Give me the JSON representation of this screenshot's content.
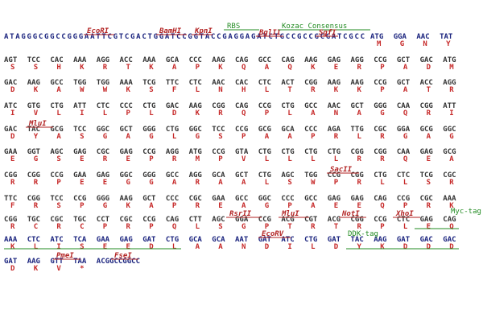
{
  "rows": [
    {
      "prefix": "ATAGGGCGGCCGGGAATTCGTCGACTGGATCCGGTACCGAGGAGATCTGCCGCCGCGATCGCC",
      "codons": [
        "ATG",
        "GGA",
        "AAC",
        "TAT"
      ],
      "aa": [
        "M",
        "G",
        "N",
        "Y"
      ],
      "annotations": [
        {
          "label": "EcoRI",
          "color": "#b22222"
        },
        {
          "label": "BamHI",
          "color": "#b22222"
        },
        {
          "label": "KpnI",
          "color": "#b22222"
        },
        {
          "label": "RBS",
          "color": "#228b22"
        },
        {
          "label": "BglII",
          "color": "#b22222"
        },
        {
          "label": "Kozac Consensus",
          "color": "#228b22"
        },
        {
          "label": "SgfI",
          "color": "#b22222"
        }
      ]
    },
    {
      "codons": [
        "AGT",
        "TCC",
        "CAC",
        "AAA",
        "AGG",
        "ACC",
        "AAA",
        "GCA",
        "CCC",
        "AAG",
        "CAG",
        "GCC",
        "CAG",
        "AAG",
        "GAG",
        "AGG",
        "CCG",
        "GCT",
        "GAC",
        "ATG"
      ],
      "aa": [
        "S",
        "S",
        "H",
        "K",
        "R",
        "T",
        "K",
        "A",
        "P",
        "K",
        "Q",
        "A",
        "Q",
        "K",
        "E",
        "R",
        "P",
        "A",
        "D",
        "M"
      ],
      "annotations": []
    },
    {
      "codons": [
        "GAC",
        "AAG",
        "GCC",
        "TGG",
        "TGG",
        "AAA",
        "TCG",
        "TTC",
        "CTC",
        "AAC",
        "CAC",
        "CTC",
        "ACT",
        "CGG",
        "AAG",
        "AAG",
        "CCG",
        "GCT",
        "ACC",
        "AGG"
      ],
      "aa": [
        "D",
        "K",
        "A",
        "W",
        "W",
        "K",
        "S",
        "F",
        "L",
        "N",
        "H",
        "L",
        "T",
        "R",
        "K",
        "K",
        "P",
        "A",
        "T",
        "R"
      ],
      "annotations": []
    },
    {
      "codons": [
        "ATC",
        "GTG",
        "CTG",
        "ATT",
        "CTC",
        "CCC",
        "CTG",
        "GAC",
        "AAG",
        "CGG",
        "CAG",
        "CCG",
        "CTG",
        "GCC",
        "AAC",
        "GCT",
        "GGG",
        "CAA",
        "CGG",
        "ATT"
      ],
      "aa": [
        "I",
        "V",
        "L",
        "I",
        "L",
        "P",
        "L",
        "D",
        "K",
        "R",
        "Q",
        "P",
        "L",
        "A",
        "N",
        "A",
        "G",
        "Q",
        "R",
        "I"
      ],
      "annotations": []
    },
    {
      "codons": [
        "GAC",
        "TAC",
        "GCG",
        "TCC",
        "GGC",
        "GCT",
        "GGG",
        "CTG",
        "GGC",
        "TCC",
        "CCG",
        "GCG",
        "GCA",
        "CCC",
        "AGA",
        "TTG",
        "CGC",
        "GGA",
        "GCG",
        "GGC"
      ],
      "aa": [
        "D",
        "Y",
        "A",
        "S",
        "G",
        "A",
        "G",
        "L",
        "G",
        "S",
        "P",
        "A",
        "A",
        "P",
        "R",
        "L",
        "R",
        "G",
        "A",
        "G"
      ],
      "annotations": [
        {
          "label": "MluI",
          "color": "#b22222"
        }
      ]
    },
    {
      "codons": [
        "GAA",
        "GGT",
        "AGC",
        "GAG",
        "CGC",
        "GAG",
        "CCG",
        "AGG",
        "ATG",
        "CCG",
        "GTA",
        "CTG",
        "CTG",
        "CTG",
        "CTG",
        "CGG",
        "CGG",
        "CAA",
        "GAG",
        "GCG"
      ],
      "aa": [
        "E",
        "G",
        "S",
        "E",
        "R",
        "E",
        "P",
        "R",
        "M",
        "P",
        "V",
        "L",
        "L",
        "L",
        "L",
        "R",
        "R",
        "Q",
        "E",
        "A"
      ],
      "annotations": []
    },
    {
      "codons": [
        "CGG",
        "CGG",
        "CCG",
        "GAA",
        "GAG",
        "GGC",
        "GGG",
        "GCC",
        "AGG",
        "GCA",
        "GCT",
        "CTG",
        "AGC",
        "TGG",
        "CCG",
        "CGG",
        "CTG",
        "CTC",
        "TCG",
        "CGC"
      ],
      "aa": [
        "R",
        "R",
        "P",
        "E",
        "E",
        "G",
        "G",
        "A",
        "R",
        "A",
        "A",
        "L",
        "S",
        "W",
        "P",
        "R",
        "L",
        "L",
        "S",
        "R"
      ],
      "annotations": [
        {
          "label": "SacII",
          "color": "#b22222"
        }
      ]
    },
    {
      "codons": [
        "TTC",
        "CGG",
        "TCC",
        "CCG",
        "GGG",
        "AAG",
        "GCT",
        "CCC",
        "CGC",
        "GAA",
        "GCC",
        "GGC",
        "CCC",
        "GCC",
        "GAG",
        "GAG",
        "CAG",
        "CCG",
        "CGC",
        "AAA"
      ],
      "aa": [
        "F",
        "R",
        "S",
        "P",
        "G",
        "K",
        "A",
        "P",
        "R",
        "E",
        "A",
        "G",
        "P",
        "A",
        "E",
        "E",
        "Q",
        "P",
        "R",
        "K"
      ],
      "annotations": []
    },
    {
      "codons": [
        "CGG",
        "TGC",
        "CGC",
        "TGC",
        "CCT",
        "CGC",
        "CCG",
        "CAG",
        "CTT",
        "AGC",
        "GGA",
        "CCG",
        "ACG",
        "CGT",
        "ACG",
        "CGG",
        "CCG",
        "CTC",
        "GAG",
        "CAG"
      ],
      "aa": [
        "R",
        "C",
        "R",
        "C",
        "P",
        "R",
        "P",
        "Q",
        "L",
        "S",
        "G",
        "P",
        "T",
        "R",
        "T",
        "R",
        "P",
        "L",
        "E",
        "Q"
      ],
      "annotations": [
        {
          "label": "RsrII",
          "color": "#b22222"
        },
        {
          "label": "MluI",
          "color": "#b22222"
        },
        {
          "label": "NotI",
          "color": "#b22222"
        },
        {
          "label": "XhoI",
          "color": "#b22222"
        },
        {
          "label": "Myc-tag",
          "color": "#228b22"
        }
      ]
    },
    {
      "codons": [
        "AAA",
        "CTC",
        "ATC",
        "TCA",
        "GAA",
        "GAG",
        "GAT",
        "CTG",
        "GCA",
        "GCA",
        "AAT",
        "GAT",
        "ATC",
        "CTG",
        "GAT",
        "TAC",
        "AAG",
        "GAT",
        "GAC",
        "GAC"
      ],
      "aa": [
        "K",
        "L",
        "I",
        "S",
        "E",
        "E",
        "D",
        "L",
        "A",
        "A",
        "N",
        "D",
        "I",
        "L",
        "D",
        "Y",
        "K",
        "D",
        "D",
        "D"
      ],
      "annotations": [
        {
          "label": "EcoRV",
          "color": "#b22222"
        },
        {
          "label": "DDK-tag",
          "color": "#228b22"
        }
      ]
    },
    {
      "codons": [
        "GAT",
        "AAG",
        "GTT",
        "TAA"
      ],
      "aa": [
        "D",
        "K",
        "V",
        "*"
      ],
      "suffix": "ACGGCCGGCC",
      "annotations": [
        {
          "label": "PmeI",
          "color": "#b22222"
        },
        {
          "label": "FseI",
          "color": "#b22222"
        }
      ]
    }
  ]
}
